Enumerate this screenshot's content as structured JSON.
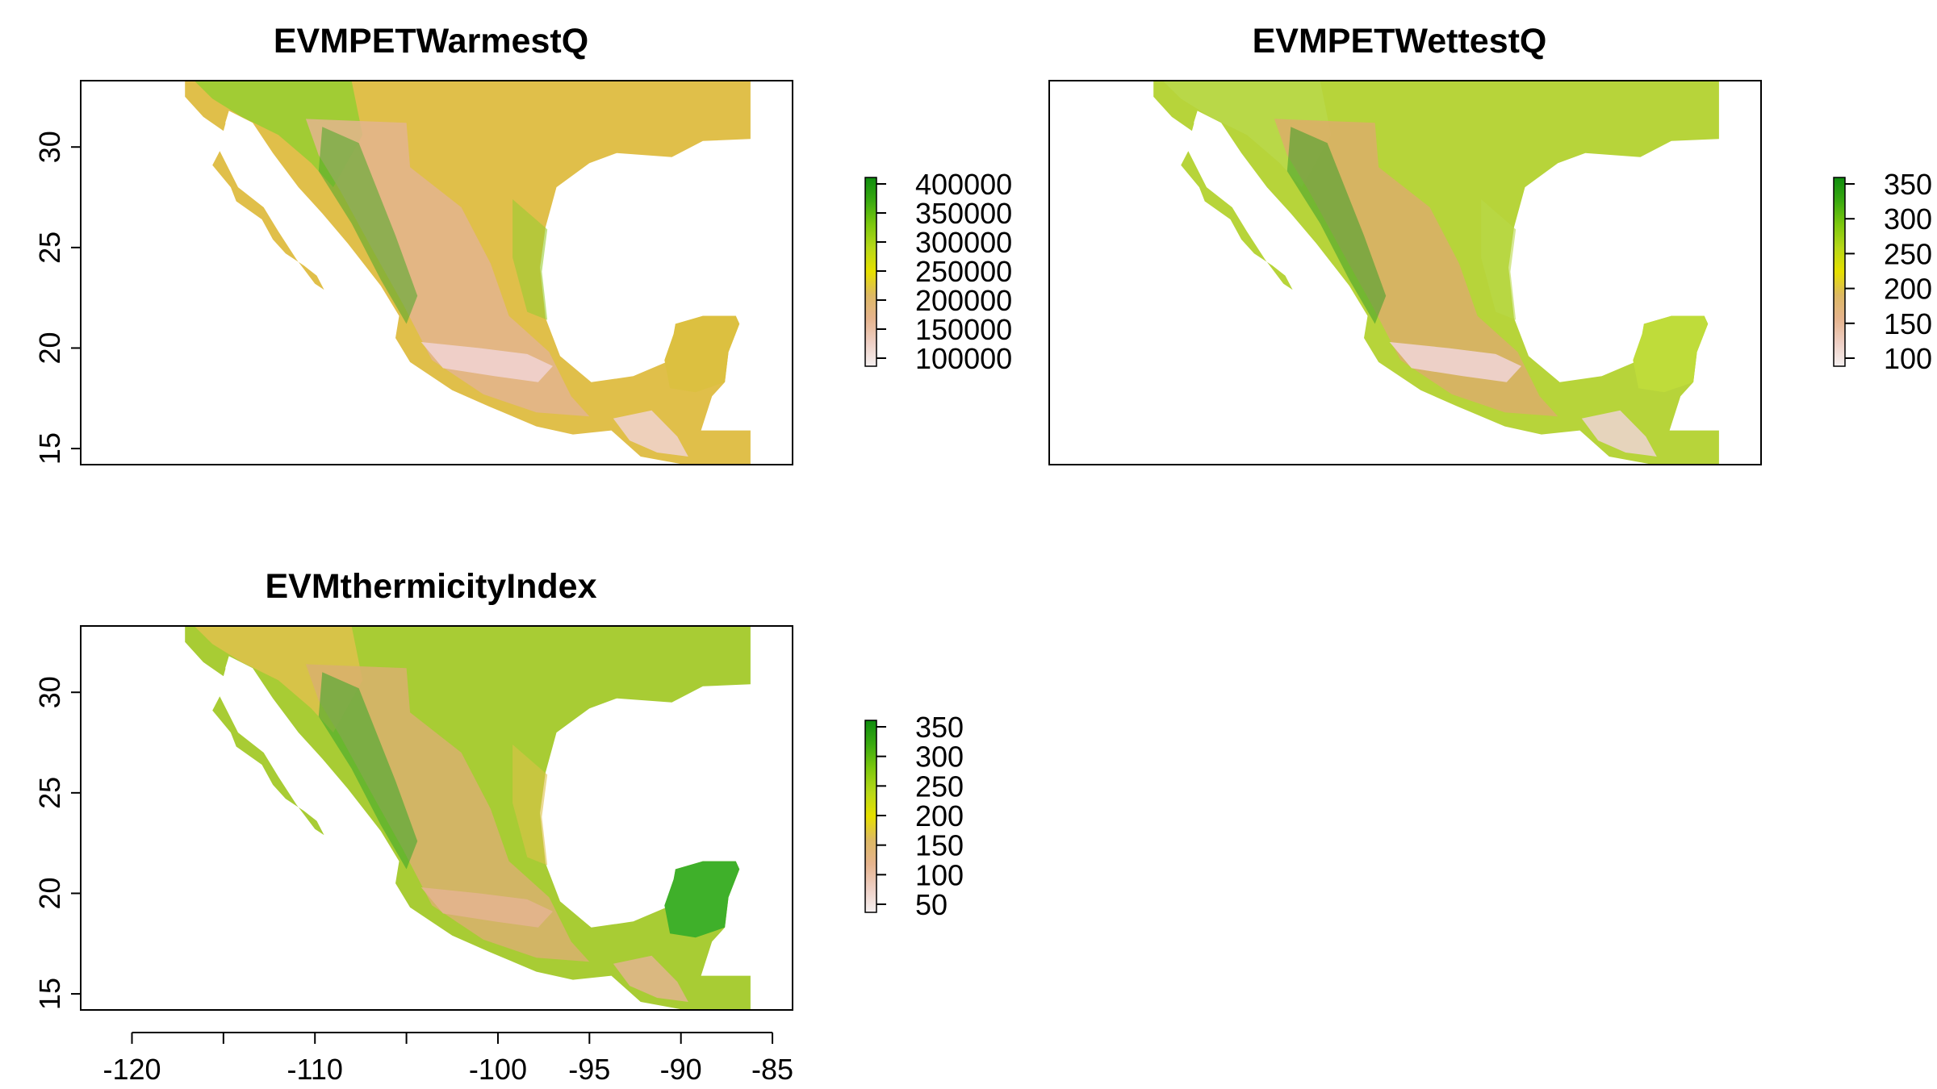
{
  "panels": [
    {
      "id": "warm",
      "title": "EVMPETWarmestQ",
      "legend": [
        "400000",
        "350000",
        "300000",
        "250000",
        "200000",
        "150000",
        "100000"
      ],
      "y_ticks": [
        "30",
        "25",
        "20",
        "15"
      ],
      "show_x_axis": false,
      "fill": {
        "base": "#e0bf4a",
        "north": "#9acd32",
        "highland": "#e3b48e",
        "peaks": "#f0d2cf",
        "green": "#4aa82a",
        "yucatan": "#dcc040"
      }
    },
    {
      "id": "wet",
      "title": "EVMPETWettestQ",
      "legend": [
        "350",
        "300",
        "250",
        "200",
        "150",
        "100"
      ],
      "y_ticks": [],
      "show_x_axis": false,
      "fill": {
        "base": "#b7d43a",
        "north": "#b9d84a",
        "highland": "#dcae6a",
        "peaks": "#efd3d3",
        "green": "#3c9e2a",
        "yucatan": "#bfdc3a"
      }
    },
    {
      "id": "therm",
      "title": "EVMthermicityIndex",
      "legend": [
        "350",
        "300",
        "250",
        "200",
        "150",
        "100",
        "50"
      ],
      "y_ticks": [
        "30",
        "25",
        "20",
        "15"
      ],
      "show_x_axis": true,
      "x_ticks": [
        "-120",
        "-110",
        "-100",
        "-95",
        "-90",
        "-85"
      ],
      "fill": {
        "base": "#a8cc34",
        "north": "#dcc24a",
        "highland": "#d9b06f",
        "peaks": "#e3b48e",
        "green": "#35a62a",
        "yucatan": "#3fb02a"
      }
    }
  ],
  "colorbar": [
    "#f5f0f0",
    "#eecfc4",
    "#e6b48e",
    "#ddb864",
    "#e6e000",
    "#b8d818",
    "#7dc80e",
    "#3aaa10",
    "#0f8c0f"
  ]
}
